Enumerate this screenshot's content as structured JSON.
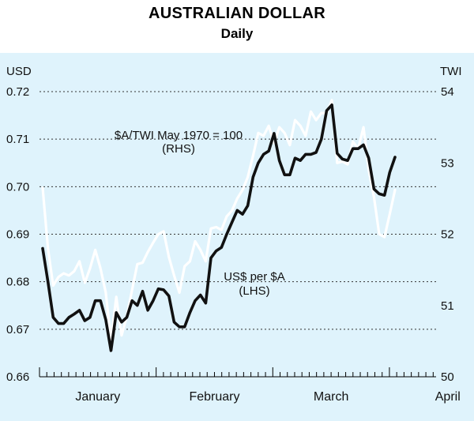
{
  "chart_data": {
    "type": "line",
    "title": "AUSTRALIAN DOLLAR",
    "subtitle": "Daily",
    "left_axis": {
      "label": "USD",
      "ylim": [
        0.66,
        0.72
      ],
      "ticks": [
        "0.72",
        "0.71",
        "0.70",
        "0.69",
        "0.68",
        "0.67",
        "0.66"
      ]
    },
    "right_axis": {
      "label": "TWI",
      "ylim": [
        50,
        54
      ],
      "ticks": [
        "54",
        "53",
        "52",
        "51",
        "50"
      ]
    },
    "x_axis": {
      "categories": [
        "January",
        "February",
        "March",
        "April"
      ]
    },
    "grid": "dotted horizontal",
    "colors": {
      "background": "#dff3fc",
      "usd_line": "#111111",
      "twi_line": "#ffffff"
    },
    "annotations": [
      {
        "text": "$A/TWI May 1970 = 100",
        "line2": "(RHS)"
      },
      {
        "text": "US$ per $A",
        "line2": "(LHS)"
      }
    ],
    "series": [
      {
        "axis": "left",
        "annotation": "US$ per $A (LHS)",
        "values": [
          0.687,
          0.68,
          0.6725,
          0.6712,
          0.6712,
          0.6725,
          0.6732,
          0.674,
          0.6718,
          0.6725,
          0.676,
          0.676,
          0.672,
          0.6655,
          0.6735,
          0.6715,
          0.6725,
          0.676,
          0.675,
          0.678,
          0.674,
          0.676,
          0.6785,
          0.6783,
          0.677,
          0.6715,
          0.6705,
          0.6705,
          0.6735,
          0.676,
          0.6772,
          0.6755,
          0.685,
          0.6865,
          0.6872,
          0.69,
          0.6925,
          0.695,
          0.6942,
          0.696,
          0.702,
          0.705,
          0.7068,
          0.7075,
          0.7112,
          0.7055,
          0.7025,
          0.7025,
          0.706,
          0.7055,
          0.7068,
          0.7068,
          0.7072,
          0.71,
          0.716,
          0.7172,
          0.707,
          0.7058,
          0.7055,
          0.708,
          0.708,
          0.7088,
          0.706,
          0.6995,
          0.6985,
          0.6982,
          0.703,
          0.7062
        ]
      },
      {
        "axis": "right",
        "annotation": "$A/TWI May 1970 = 100 (RHS)",
        "values": [
          52.65,
          51.8,
          51.28,
          51.4,
          51.45,
          51.42,
          51.48,
          51.62,
          51.32,
          51.52,
          51.78,
          51.52,
          51.18,
          50.5,
          51.12,
          50.58,
          50.85,
          51.22,
          51.58,
          51.6,
          51.75,
          51.88,
          52.0,
          52.04,
          51.68,
          51.42,
          51.18,
          51.55,
          51.62,
          51.9,
          51.78,
          51.62,
          52.08,
          52.1,
          52.06,
          52.25,
          52.33,
          52.5,
          52.62,
          52.8,
          53.1,
          53.42,
          53.38,
          53.52,
          53.28,
          53.5,
          53.42,
          53.25,
          53.6,
          53.52,
          53.38,
          53.72,
          53.6,
          53.7,
          53.7,
          53.88,
          53.0,
          53.02,
          52.98,
          53.3,
          53.2,
          53.5,
          52.9,
          52.52,
          52.0,
          51.96,
          52.28,
          52.62
        ]
      }
    ]
  }
}
